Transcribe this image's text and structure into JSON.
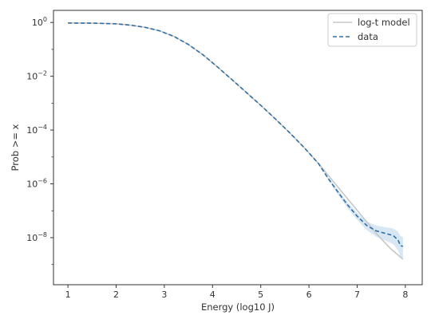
{
  "chart_data": {
    "type": "line",
    "xlabel": "Energy (log10 J)",
    "ylabel": "Prob >= x",
    "xlim": [
      0.7,
      8.35
    ],
    "ylim_log10": [
      -9.75,
      0.45
    ],
    "y_scale": "log",
    "grid": false,
    "legend_position": "top-right",
    "x_ticks": [
      1,
      2,
      3,
      4,
      5,
      6,
      7,
      8
    ],
    "x_tick_labels": [
      "1",
      "2",
      "3",
      "4",
      "5",
      "6",
      "7",
      "8"
    ],
    "y_ticks_exponent": [
      0,
      -2,
      -4,
      -6,
      -8
    ],
    "y_tick_labels": [
      {
        "base": "10",
        "exp": "0"
      },
      {
        "base": "10",
        "exp": "−2"
      },
      {
        "base": "10",
        "exp": "−4"
      },
      {
        "base": "10",
        "exp": "−6"
      },
      {
        "base": "10",
        "exp": "−8"
      }
    ],
    "series": [
      {
        "name": "log-t model",
        "color": "#c7c7c7",
        "style": "solid",
        "x": [
          1.0,
          1.5,
          2.0,
          2.3,
          2.6,
          2.9,
          3.2,
          3.5,
          3.8,
          4.1,
          4.4,
          4.7,
          5.0,
          5.3,
          5.6,
          5.9,
          6.2,
          6.5,
          6.8,
          7.1,
          7.4,
          7.7,
          7.95
        ],
        "log10_y": [
          -0.02,
          -0.025,
          -0.05,
          -0.1,
          -0.18,
          -0.31,
          -0.52,
          -0.82,
          -1.2,
          -1.65,
          -2.12,
          -2.6,
          -3.08,
          -3.58,
          -4.1,
          -4.65,
          -5.25,
          -5.9,
          -6.55,
          -7.2,
          -7.85,
          -8.42,
          -8.8
        ]
      },
      {
        "name": "data",
        "color": "#2f6fa8",
        "style": "dashed",
        "x": [
          1.0,
          1.5,
          2.0,
          2.3,
          2.6,
          2.9,
          3.2,
          3.5,
          3.8,
          4.1,
          4.4,
          4.7,
          5.0,
          5.3,
          5.6,
          5.9,
          6.2,
          6.4,
          6.6,
          6.8,
          7.0,
          7.2,
          7.4,
          7.6,
          7.75,
          7.85,
          7.9,
          7.95
        ],
        "log10_y": [
          -0.02,
          -0.025,
          -0.05,
          -0.1,
          -0.18,
          -0.31,
          -0.52,
          -0.82,
          -1.2,
          -1.65,
          -2.12,
          -2.6,
          -3.08,
          -3.58,
          -4.1,
          -4.65,
          -5.25,
          -5.8,
          -6.3,
          -6.78,
          -7.2,
          -7.55,
          -7.75,
          -7.85,
          -7.92,
          -8.1,
          -8.3,
          -8.32
        ],
        "band_log10_upper": [
          -0.01,
          -0.015,
          -0.04,
          -0.09,
          -0.17,
          -0.3,
          -0.51,
          -0.81,
          -1.19,
          -1.64,
          -2.11,
          -2.59,
          -3.07,
          -3.56,
          -4.08,
          -4.62,
          -5.21,
          -5.74,
          -6.22,
          -6.68,
          -7.08,
          -7.4,
          -7.55,
          -7.62,
          -7.66,
          -7.78,
          -7.95,
          -7.98
        ],
        "band_log10_lower": [
          -0.03,
          -0.035,
          -0.06,
          -0.11,
          -0.19,
          -0.32,
          -0.53,
          -0.83,
          -1.21,
          -1.66,
          -2.13,
          -2.61,
          -3.09,
          -3.6,
          -4.12,
          -4.68,
          -5.29,
          -5.87,
          -6.4,
          -6.9,
          -7.34,
          -7.72,
          -7.97,
          -8.12,
          -8.24,
          -8.48,
          -8.72,
          -8.76
        ]
      }
    ]
  }
}
